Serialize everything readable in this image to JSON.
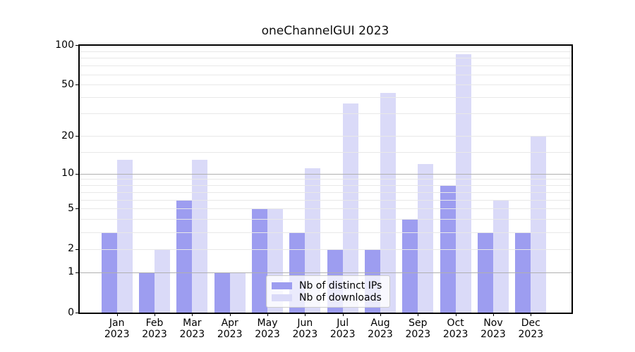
{
  "figure": {
    "title": "oneChannelGUI 2023"
  },
  "colors": {
    "distinct_ips": "#9d9df0",
    "downloads": "#dadaf8",
    "grid_major": "#b0b0b0",
    "grid_minor": "#e8e8e8",
    "axis": "#000000",
    "legend_border": "#cccccc"
  },
  "legend": {
    "items": [
      {
        "label": "Nb of distinct IPs",
        "series": "distinct_ips"
      },
      {
        "label": "Nb of downloads",
        "series": "downloads"
      }
    ],
    "position": "lower center"
  },
  "chart_data": {
    "type": "bar",
    "title": "oneChannelGUI 2023",
    "categories": [
      "Jan 2023",
      "Feb 2023",
      "Mar 2023",
      "Apr 2023",
      "May 2023",
      "Jun 2023",
      "Jul 2023",
      "Aug 2023",
      "Sep 2023",
      "Oct 2023",
      "Nov 2023",
      "Dec 2023"
    ],
    "x_months": [
      "Jan",
      "Feb",
      "Mar",
      "Apr",
      "May",
      "Jun",
      "Jul",
      "Aug",
      "Sep",
      "Oct",
      "Nov",
      "Dec"
    ],
    "x_year": "2023",
    "series": [
      {
        "name": "Nb of distinct IPs",
        "key": "distinct_ips",
        "values": [
          3,
          1,
          6,
          1,
          5,
          3,
          2,
          2,
          4,
          8,
          3,
          3
        ]
      },
      {
        "name": "Nb of downloads",
        "key": "downloads",
        "values": [
          13,
          2,
          13,
          1,
          5,
          11,
          36,
          43,
          12,
          85,
          6,
          20
        ]
      }
    ],
    "y_scale": "log10(value+1)",
    "ylim": [
      0,
      100
    ],
    "y_ticks_labeled": [
      0,
      1,
      2,
      5,
      10,
      20,
      50,
      100
    ],
    "y_gridlines_major": [
      1,
      10,
      100
    ],
    "y_gridlines_minor": [
      2,
      3,
      4,
      5,
      6,
      7,
      8,
      9,
      15,
      20,
      30,
      40,
      50,
      60,
      70,
      80,
      90
    ],
    "xlabel": "",
    "ylabel": "",
    "grid": "horizontal",
    "legend_position": "lower center"
  }
}
